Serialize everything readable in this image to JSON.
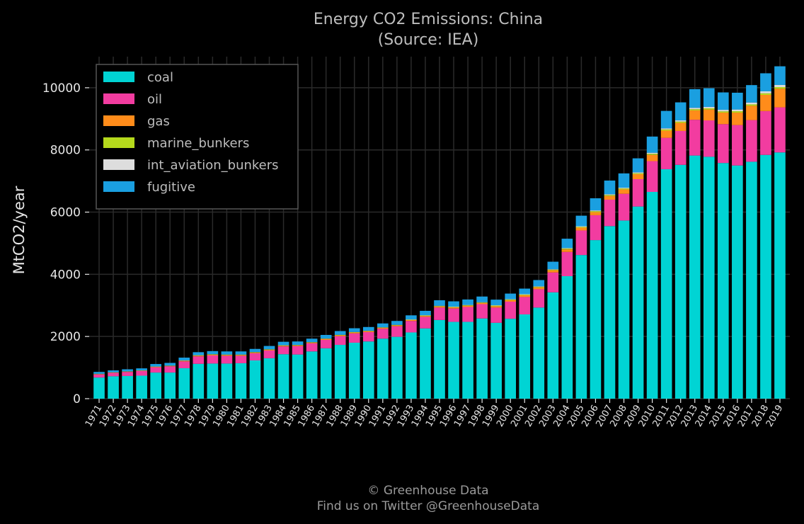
{
  "chart_data": {
    "type": "bar",
    "stacked": true,
    "title": "Energy CO2 Emissions: China",
    "subtitle": "(Source: IEA)",
    "ylabel": "MtCO2/year",
    "xlabel": "",
    "ylim": [
      0,
      11000
    ],
    "yticks": [
      0,
      2000,
      4000,
      6000,
      8000,
      10000
    ],
    "grid": true,
    "legend_position": "top-left",
    "background": "#000000",
    "categories": [
      "1971",
      "1972",
      "1973",
      "1974",
      "1975",
      "1976",
      "1977",
      "1978",
      "1979",
      "1980",
      "1981",
      "1982",
      "1983",
      "1984",
      "1985",
      "1986",
      "1987",
      "1988",
      "1989",
      "1990",
      "1991",
      "1992",
      "1993",
      "1994",
      "1995",
      "1996",
      "1997",
      "1998",
      "1999",
      "2000",
      "2001",
      "2002",
      "2003",
      "2004",
      "2005",
      "2006",
      "2007",
      "2008",
      "2009",
      "2010",
      "2011",
      "2012",
      "2013",
      "2014",
      "2015",
      "2016",
      "2017",
      "2018",
      "2019"
    ],
    "series": [
      {
        "name": "coal",
        "color": "#00d4d4",
        "values": [
          680,
          720,
          730,
          740,
          840,
          840,
          980,
          1120,
          1130,
          1130,
          1140,
          1230,
          1300,
          1430,
          1420,
          1520,
          1620,
          1730,
          1800,
          1840,
          1930,
          1990,
          2130,
          2260,
          2530,
          2470,
          2470,
          2580,
          2440,
          2570,
          2710,
          2930,
          3420,
          3940,
          4620,
          5100,
          5550,
          5730,
          6180,
          6650,
          7380,
          7520,
          7820,
          7780,
          7580,
          7500,
          7620,
          7840,
          7920
        ]
      },
      {
        "name": "oil",
        "color": "#f23ca0",
        "values": [
          100,
          110,
          130,
          150,
          170,
          200,
          220,
          240,
          260,
          250,
          240,
          230,
          250,
          250,
          270,
          260,
          270,
          280,
          300,
          300,
          320,
          340,
          370,
          370,
          400,
          430,
          480,
          460,
          490,
          550,
          560,
          590,
          640,
          780,
          790,
          800,
          850,
          860,
          880,
          990,
          1010,
          1090,
          1150,
          1170,
          1250,
          1300,
          1340,
          1410,
          1450
        ]
      },
      {
        "name": "gas",
        "color": "#ff8c1a",
        "values": [
          10,
          10,
          10,
          10,
          15,
          15,
          20,
          25,
          25,
          25,
          25,
          25,
          25,
          25,
          25,
          25,
          30,
          30,
          30,
          30,
          30,
          30,
          30,
          30,
          35,
          35,
          40,
          40,
          45,
          50,
          55,
          60,
          70,
          80,
          90,
          100,
          120,
          140,
          160,
          200,
          230,
          260,
          300,
          350,
          370,
          400,
          460,
          520,
          600
        ]
      },
      {
        "name": "marine_bunkers",
        "color": "#b5d91c",
        "values": [
          5,
          5,
          5,
          5,
          5,
          5,
          5,
          10,
          10,
          10,
          10,
          10,
          10,
          10,
          10,
          10,
          10,
          10,
          10,
          10,
          10,
          10,
          10,
          15,
          15,
          15,
          15,
          15,
          20,
          20,
          20,
          20,
          20,
          25,
          25,
          30,
          30,
          30,
          30,
          35,
          40,
          40,
          40,
          40,
          40,
          45,
          45,
          50,
          50
        ]
      },
      {
        "name": "int_aviation_bunkers",
        "color": "#dddddd",
        "values": [
          5,
          5,
          5,
          5,
          5,
          5,
          5,
          5,
          5,
          5,
          5,
          5,
          5,
          5,
          5,
          5,
          5,
          5,
          5,
          5,
          5,
          5,
          10,
          10,
          10,
          10,
          10,
          10,
          10,
          10,
          15,
          15,
          15,
          20,
          20,
          25,
          25,
          25,
          30,
          35,
          35,
          40,
          45,
          45,
          50,
          55,
          60,
          65,
          70
        ]
      },
      {
        "name": "fugitive",
        "color": "#1a9fe0",
        "values": [
          60,
          60,
          65,
          65,
          80,
          85,
          90,
          95,
          100,
          100,
          100,
          100,
          105,
          110,
          110,
          110,
          115,
          120,
          120,
          120,
          125,
          125,
          130,
          140,
          175,
          170,
          175,
          180,
          180,
          180,
          180,
          200,
          240,
          300,
          340,
          390,
          440,
          460,
          450,
          520,
          560,
          580,
          600,
          600,
          560,
          540,
          560,
          580,
          600
        ]
      }
    ]
  },
  "footer": {
    "line1": "© Greenhouse Data",
    "line2": "Find us on Twitter @GreenhouseData"
  }
}
